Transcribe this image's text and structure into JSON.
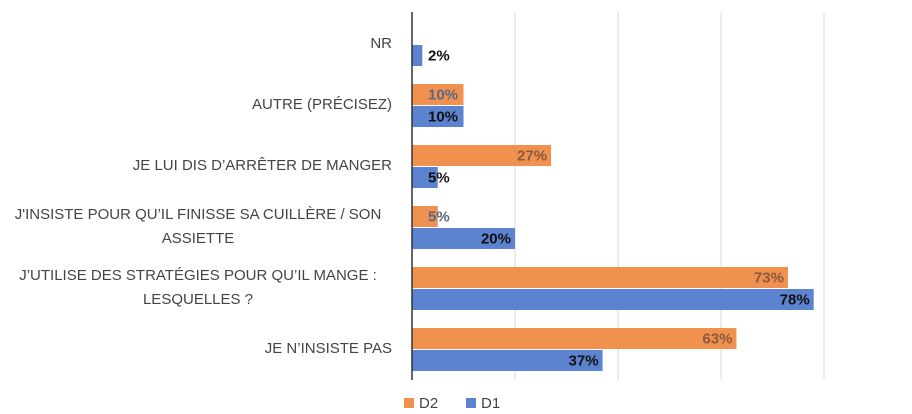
{
  "chart_data": {
    "type": "barh",
    "categories": [
      "NR",
      "AUTRE (PRÉCISEZ)",
      "JE LUI DIS D’ARRÊTER DE MANGER",
      "J'INSISTE POUR QU’IL FINISSE SA CUILLÈRE / SON ASSIETTE",
      "J’UTILISE DES STRATÉGIES POUR QU’IL MANGE : LESQUELLES ?",
      "JE N’INSISTE PAS"
    ],
    "series": [
      {
        "name": "D2",
        "color": "#f0914f",
        "values": [
          null,
          10,
          27,
          5,
          73,
          63
        ],
        "value_labels": [
          null,
          "10%",
          "27%",
          "5%",
          "73%",
          "63%"
        ]
      },
      {
        "name": "D1",
        "color": "#5b83cf",
        "values": [
          2,
          10,
          5,
          20,
          78,
          37
        ],
        "value_labels": [
          "2%",
          "10%",
          "5%",
          "20%",
          "78%",
          "37%"
        ]
      }
    ],
    "xlim": [
      0,
      80
    ],
    "xticks": [
      0,
      20,
      40,
      60,
      80
    ],
    "grid": true,
    "legend": "bottom"
  }
}
